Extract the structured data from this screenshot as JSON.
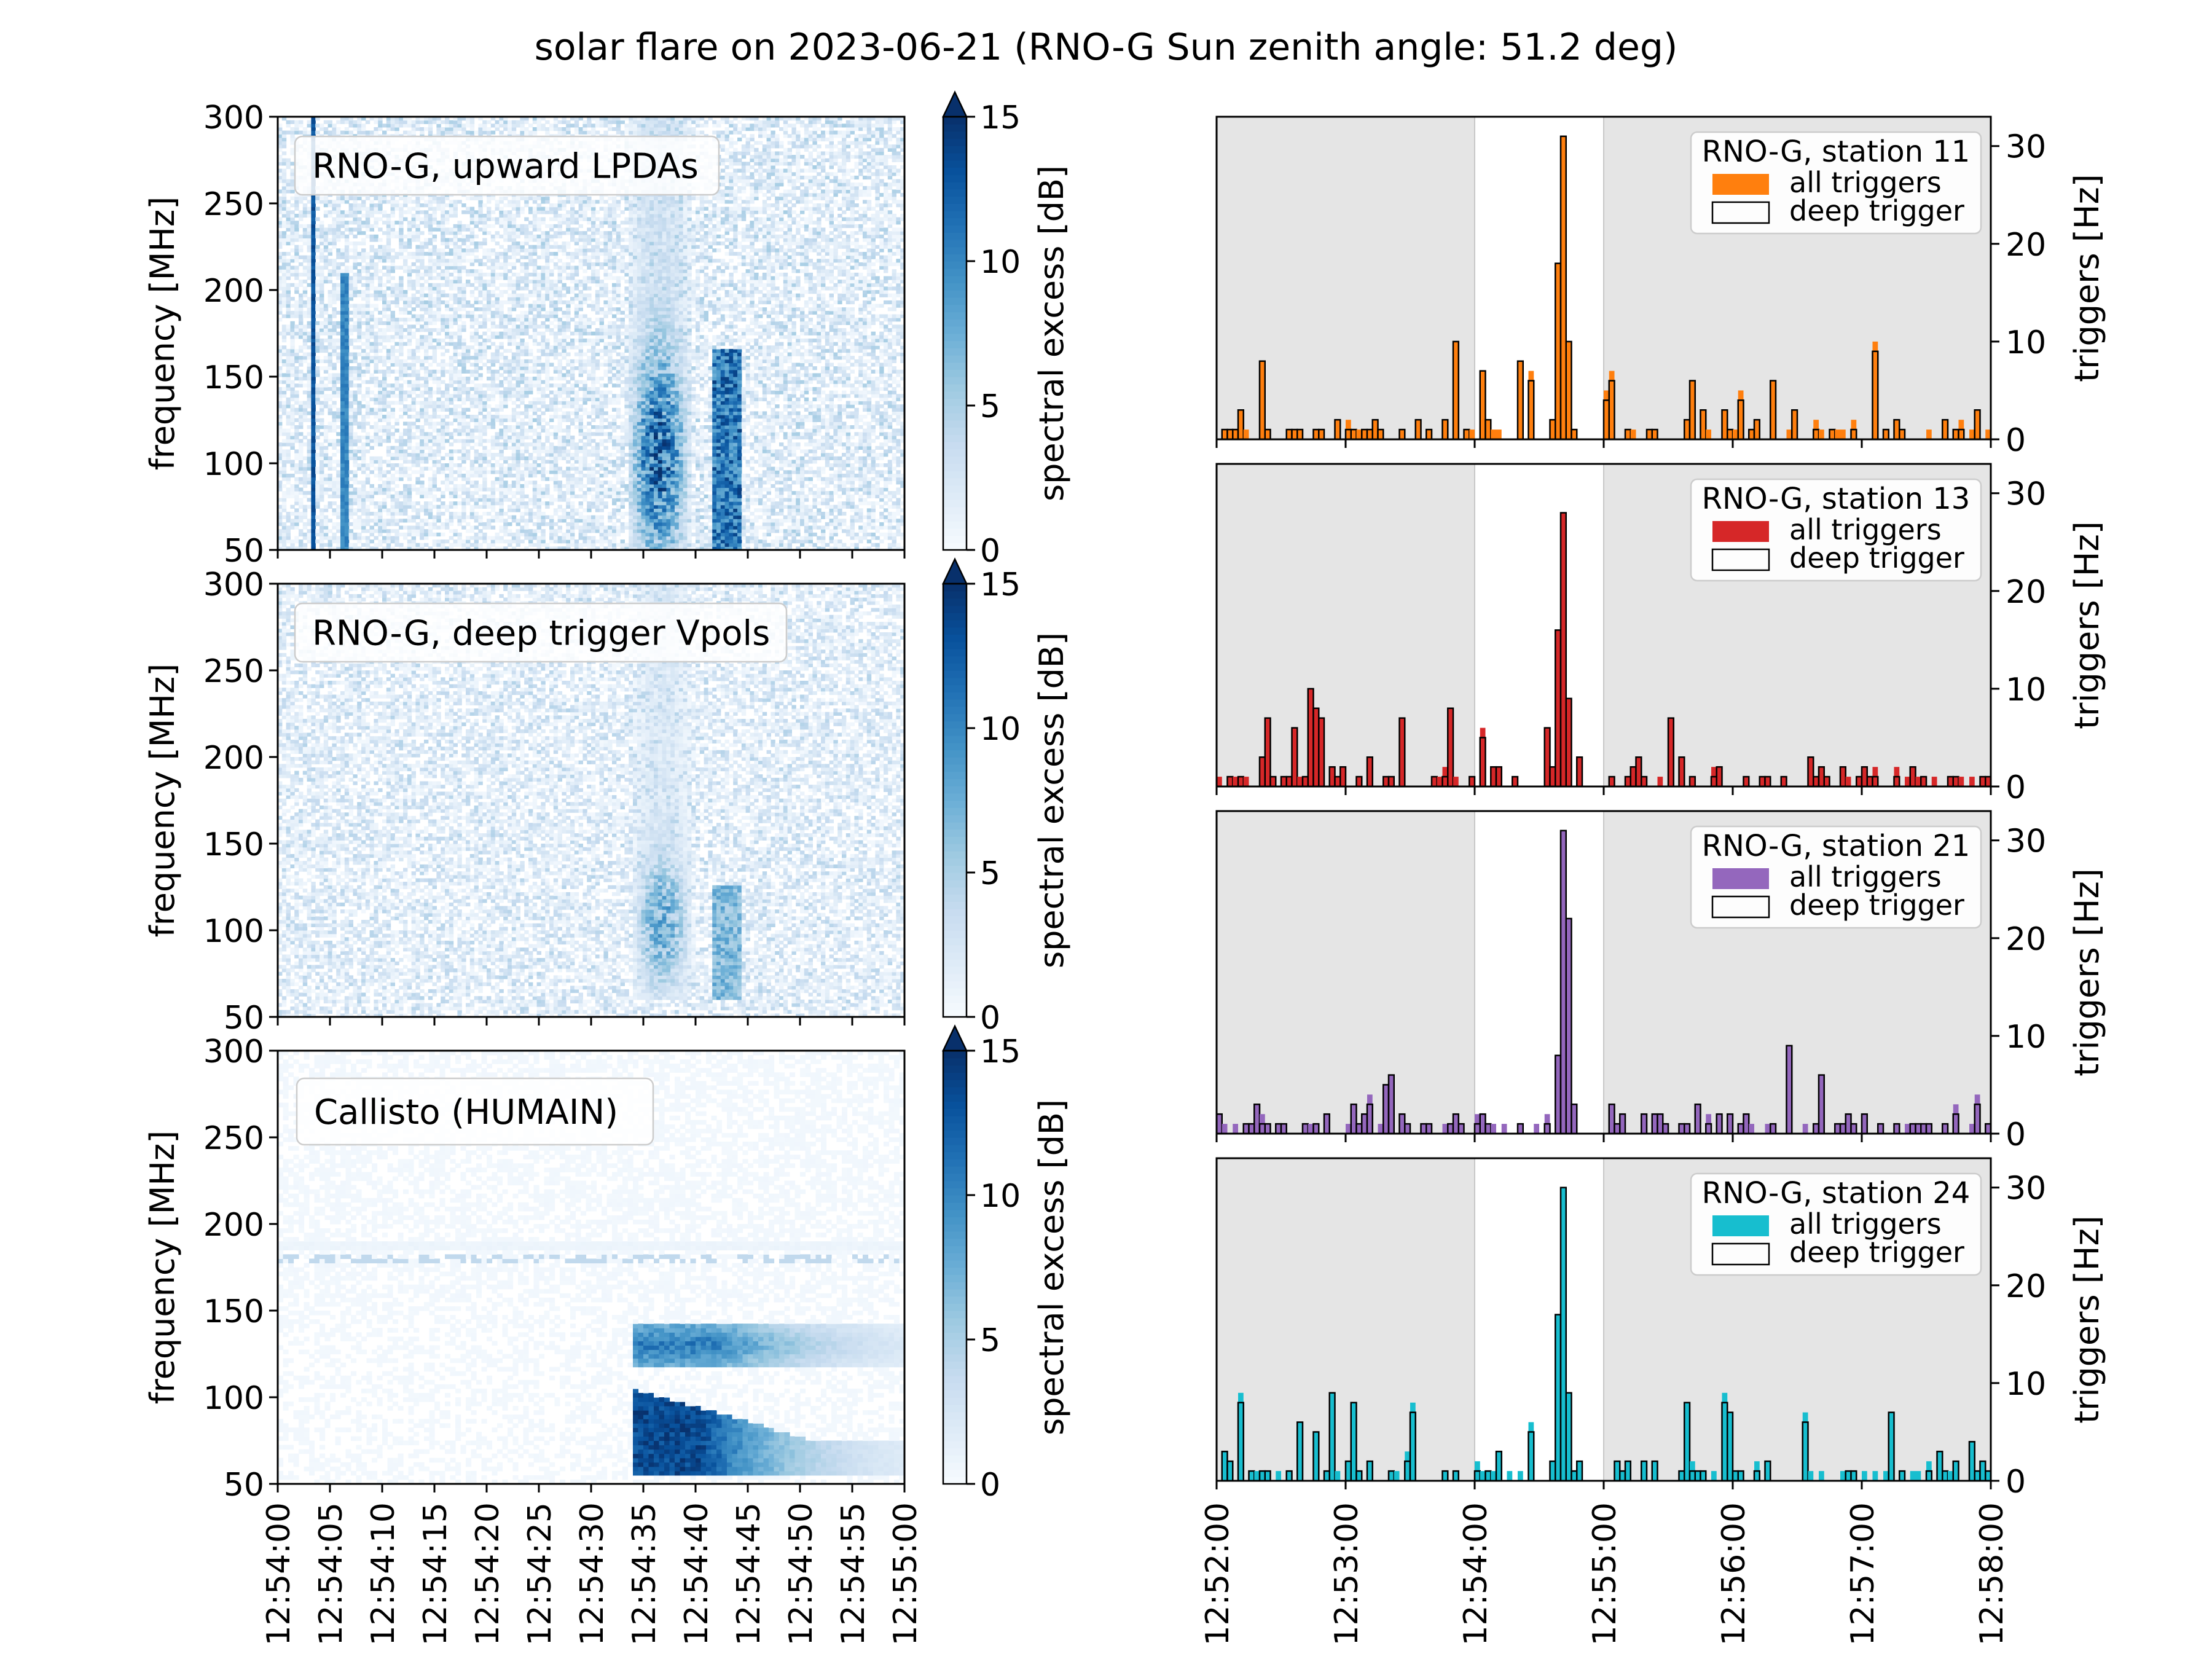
{
  "figure": {
    "title": "solar flare on 2023-06-21 (RNO-G Sun zenith angle: 51.2 deg)"
  },
  "chart_data": [
    {
      "type": "heatmap",
      "panel": "left-top",
      "label": "RNO-G, upward LPDAs",
      "ylabel": "frequency [MHz]",
      "ylim": [
        50,
        300
      ],
      "yticks": [
        "50",
        "100",
        "150",
        "200",
        "250",
        "300"
      ],
      "colorbar": {
        "label": "spectral excess [dB]",
        "range": [
          0,
          15
        ],
        "ticks": [
          "0",
          "5",
          "10",
          "15"
        ],
        "extend": "max",
        "colormap": "Blues"
      },
      "features": [
        {
          "type": "vertical-line",
          "time_s": 3.3,
          "f_lo": 50,
          "f_hi": 300,
          "value": 12
        },
        {
          "type": "vertical-line",
          "time_s": 6.4,
          "f_lo": 50,
          "f_hi": 210,
          "value": 9
        },
        {
          "type": "burst",
          "t_start_s": 33.5,
          "t_end_s": 41.5,
          "f_lo": 50,
          "f_hi": 300,
          "peak_db": 14
        },
        {
          "type": "band",
          "t_start_s": 41.5,
          "t_end_s": 44.5,
          "f_lo": 50,
          "f_hi": 165,
          "value": 13
        }
      ]
    },
    {
      "type": "heatmap",
      "panel": "left-middle",
      "label": "RNO-G, deep trigger Vpols",
      "ylabel": "frequency [MHz]",
      "ylim": [
        50,
        300
      ],
      "yticks": [
        "50",
        "100",
        "150",
        "200",
        "250",
        "300"
      ],
      "colorbar": {
        "label": "spectral excess [dB]",
        "range": [
          0,
          15
        ],
        "ticks": [
          "0",
          "5",
          "10",
          "15"
        ],
        "extend": "max",
        "colormap": "Blues"
      },
      "features": [
        {
          "type": "burst",
          "t_start_s": 34,
          "t_end_s": 41.5,
          "f_lo": 60,
          "f_hi": 300,
          "peak_db": 9
        },
        {
          "type": "band",
          "t_start_s": 41.5,
          "t_end_s": 44.5,
          "f_lo": 60,
          "f_hi": 125,
          "value": 8
        }
      ]
    },
    {
      "type": "heatmap",
      "panel": "left-bottom",
      "label": "Callisto (HUMAIN)",
      "ylabel": "frequency [MHz]",
      "ylim": [
        50,
        300
      ],
      "yticks": [
        "50",
        "100",
        "150",
        "200",
        "250",
        "300"
      ],
      "x_axis": {
        "range": [
          "12:54:00",
          "12:55:00"
        ],
        "ticks": [
          "12:54:00",
          "12:54:05",
          "12:54:10",
          "12:54:15",
          "12:54:20",
          "12:54:25",
          "12:54:30",
          "12:54:35",
          "12:54:40",
          "12:54:45",
          "12:54:50",
          "12:54:55",
          "12:55:00"
        ]
      },
      "colorbar": {
        "label": "spectral excess [dB]",
        "range": [
          0,
          15
        ],
        "ticks": [
          "0",
          "5",
          "10",
          "15"
        ],
        "extend": "max",
        "colormap": "Blues"
      },
      "features": [
        {
          "type": "band",
          "t_start_s": 34,
          "t_end_s": 60,
          "f_lo": 118,
          "f_hi": 142,
          "peak_db": 12
        },
        {
          "type": "drifting-burst",
          "t_start_s": 34,
          "t_end_s": 60,
          "f_lo": 55,
          "f_hi": 105,
          "peak_db": 15
        },
        {
          "type": "dotted-line",
          "freq_mhz": 180,
          "value": 4
        }
      ]
    },
    {
      "type": "histogram",
      "station": "RNO-G, station 11",
      "color": "#ff7f0e",
      "ylabel": "triggers [Hz]",
      "ylim": [
        0,
        33
      ],
      "yticks": [
        "0",
        "10",
        "20",
        "30"
      ],
      "shaded_outside": [
        "12:54:00",
        "12:55:00"
      ],
      "legend": [
        "all triggers",
        "deep trigger"
      ],
      "peak": {
        "time_min": 2.68,
        "all_peak": 32,
        "deep_peak": 32
      }
    },
    {
      "type": "histogram",
      "station": "RNO-G, station 13",
      "color": "#d62728",
      "ylabel": "triggers [Hz]",
      "ylim": [
        0,
        33
      ],
      "yticks": [
        "0",
        "10",
        "20",
        "30"
      ],
      "shaded_outside": [
        "12:54:00",
        "12:55:00"
      ],
      "legend": [
        "all triggers",
        "deep trigger"
      ],
      "peak": {
        "time_min": 2.68,
        "all_peak": 29,
        "deep_peak": 29
      }
    },
    {
      "type": "histogram",
      "station": "RNO-G, station 21",
      "color": "#9467bd",
      "ylabel": "triggers [Hz]",
      "ylim": [
        0,
        33
      ],
      "yticks": [
        "0",
        "10",
        "20",
        "30"
      ],
      "shaded_outside": [
        "12:54:00",
        "12:55:00"
      ],
      "legend": [
        "all triggers",
        "deep trigger"
      ],
      "peak": {
        "time_min": 2.7,
        "all_peak": 33,
        "deep_peak": 33
      }
    },
    {
      "type": "histogram",
      "station": "RNO-G, station 24",
      "color": "#17becf",
      "ylabel": "triggers [Hz]",
      "ylim": [
        0,
        33
      ],
      "yticks": [
        "0",
        "10",
        "20",
        "30"
      ],
      "shaded_outside": [
        "12:54:00",
        "12:55:00"
      ],
      "legend": [
        "all triggers",
        "deep trigger"
      ],
      "x_axis": {
        "range": [
          "12:52:00",
          "12:58:00"
        ],
        "ticks": [
          "12:52:00",
          "12:53:00",
          "12:54:00",
          "12:55:00",
          "12:56:00",
          "12:57:00",
          "12:58:00"
        ]
      },
      "peak": {
        "time_min": 2.68,
        "all_peak": 31,
        "deep_peak": 31
      }
    }
  ]
}
